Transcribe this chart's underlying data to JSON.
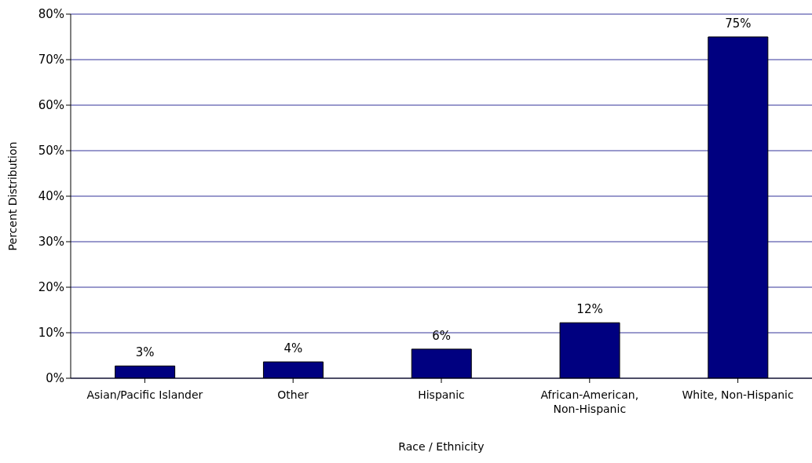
{
  "chart_data": {
    "type": "bar",
    "xlabel": "Race / Ethnicity",
    "ylabel": "Percent Distribution",
    "categories": [
      "Asian/Pacific Islander",
      "Other",
      "Hispanic",
      "African-American, Non-Hispanic",
      "White, Non-Hispanic"
    ],
    "values": [
      2.7,
      3.6,
      6.4,
      12.2,
      75
    ],
    "value_labels": [
      "3%",
      "4%",
      "6%",
      "12%",
      "75%"
    ],
    "color": "#000080",
    "ylim": [
      0,
      80
    ],
    "yticks": [
      {
        "value": 0,
        "label": "0%"
      },
      {
        "value": 10,
        "label": "10%"
      },
      {
        "value": 20,
        "label": "20%"
      },
      {
        "value": 30,
        "label": "30%"
      },
      {
        "value": 40,
        "label": "40%"
      },
      {
        "value": 50,
        "label": "50%"
      },
      {
        "value": 60,
        "label": "60%"
      },
      {
        "value": 70,
        "label": "70%"
      },
      {
        "value": 80,
        "label": "80%"
      }
    ],
    "grid": "y"
  }
}
